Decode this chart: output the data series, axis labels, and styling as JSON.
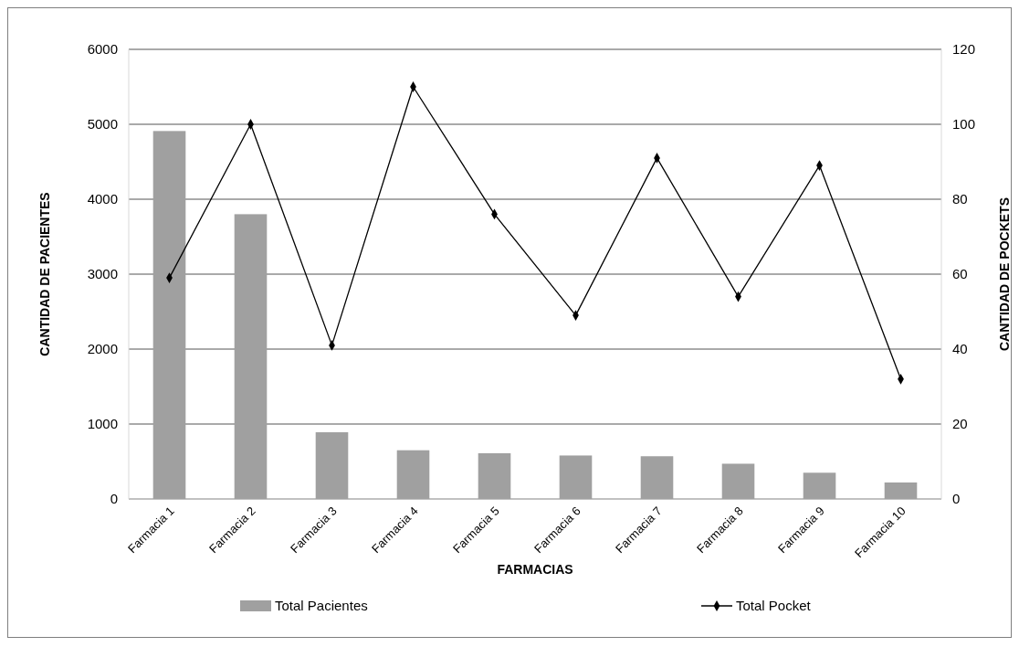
{
  "chart_data": {
    "type": "bar",
    "xlabel": "FARMACIAS",
    "ylabel": "CANTIDAD DE PACIENTES",
    "y2label": "CANTIDAD DE POCKETS",
    "categories": [
      "Farmacia 1",
      "Farmacia 2",
      "Farmacia 3",
      "Farmacia 4",
      "Farmacia 5",
      "Farmacia 6",
      "Farmacia 7",
      "Farmacia 8",
      "Farmacia 9",
      "Farmacia 10"
    ],
    "series": [
      {
        "name": "Total Pacientes",
        "color": "#a0a0a0",
        "values": [
          4910,
          3800,
          890,
          650,
          610,
          580,
          570,
          470,
          350,
          220
        ]
      },
      {
        "name": "Total Pocket",
        "type": "line",
        "axis": "y2",
        "color": "#000000",
        "marker": "diamond",
        "values": [
          59,
          100,
          41,
          110,
          76,
          49,
          91,
          54,
          89,
          32
        ]
      }
    ],
    "ylim": [
      0,
      6000
    ],
    "yticks": [
      0,
      1000,
      2000,
      3000,
      4000,
      5000,
      6000
    ],
    "y2lim": [
      0,
      120
    ],
    "y2ticks": [
      0,
      20,
      40,
      60,
      80,
      100,
      120
    ],
    "grid": "y",
    "legend": "bottom"
  }
}
